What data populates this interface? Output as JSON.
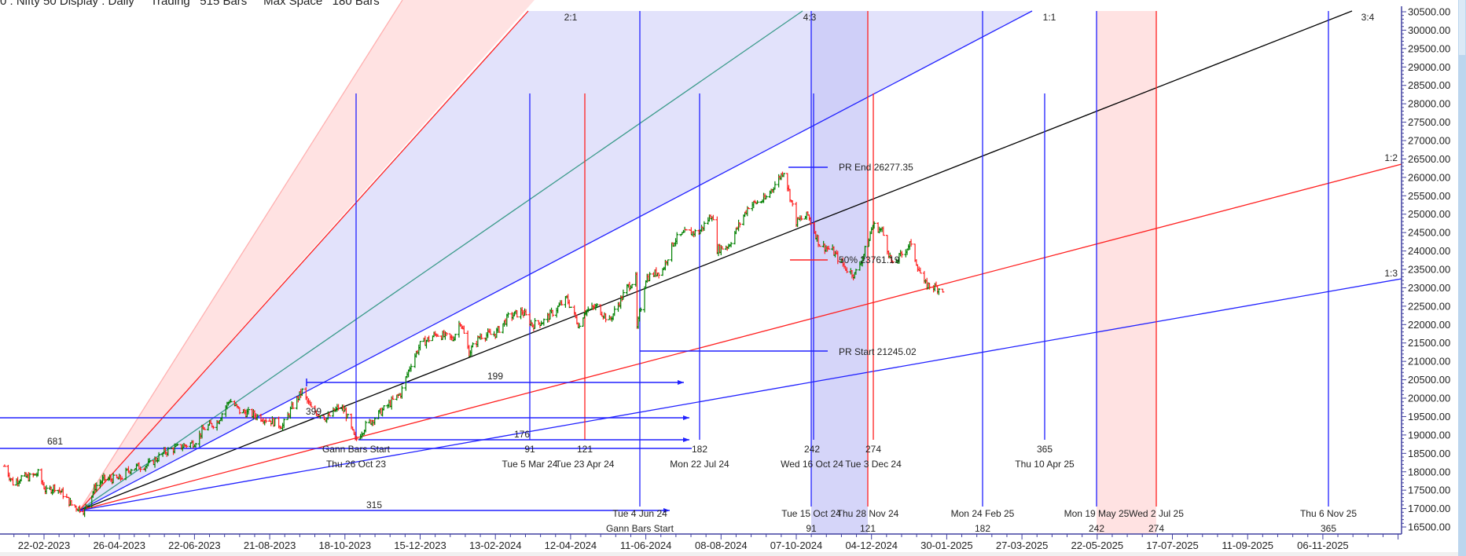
{
  "title": "0 : Nifty 50 Display : Daily     Trading   515 Bars     Max Space   180 Bars",
  "colors": {
    "up_bar": "#008000",
    "down_bar": "#ff2020",
    "gann_blue": "#2020ff",
    "gann_red": "#ff2020",
    "gann_teal": "#3a9a8a",
    "gann_black": "#000000",
    "zone_lavender": "#e2e2fb",
    "zone_lavender_dark": "#cacaf7",
    "zone_pink": "#ffe2e2",
    "axis": "#4040a0"
  },
  "chart_data": {
    "type": "ohlc",
    "instrument": "Nifty 50",
    "timeframe": "Daily",
    "y_axis": {
      "range": [
        16500,
        30500
      ],
      "ticks": [
        "30500.00",
        "30000.00",
        "29500.00",
        "29000.00",
        "28500.00",
        "28000.00",
        "27500.00",
        "27000.00",
        "26500.00",
        "26000.00",
        "25500.00",
        "25000.00",
        "24500.00",
        "24000.00",
        "23500.00",
        "23000.00",
        "22500.00",
        "22000.00",
        "21500.00",
        "21000.00",
        "20500.00",
        "20000.00",
        "19500.00",
        "19000.00",
        "18500.00",
        "18000.00",
        "17500.00",
        "17000.00",
        "16500.00"
      ]
    },
    "x_axis": {
      "ticks": [
        "22-02-2023",
        "26-04-2023",
        "22-06-2023",
        "21-08-2023",
        "18-10-2023",
        "15-12-2023",
        "13-02-2024",
        "12-04-2024",
        "11-06-2024",
        "08-08-2024",
        "07-10-2024",
        "04-12-2024",
        "30-01-2025",
        "27-03-2025",
        "22-05-2025",
        "17-07-2025",
        "11-09-2025",
        "06-11-2025"
      ]
    },
    "closes": [
      [
        "2023-01-20",
        18150
      ],
      [
        "2023-01-27",
        17700
      ],
      [
        "2023-02-03",
        17850
      ],
      [
        "2023-02-10",
        17850
      ],
      [
        "2023-02-17",
        17950
      ],
      [
        "2023-02-24",
        17450
      ],
      [
        "2023-03-03",
        17600
      ],
      [
        "2023-03-10",
        17400
      ],
      [
        "2023-03-17",
        17100
      ],
      [
        "2023-03-28",
        16950
      ],
      [
        "2023-04-06",
        17600
      ],
      [
        "2023-04-13",
        17800
      ],
      [
        "2023-04-26",
        17800
      ],
      [
        "2023-05-05",
        18100
      ],
      [
        "2023-05-19",
        18200
      ],
      [
        "2023-05-31",
        18550
      ],
      [
        "2023-06-13",
        18700
      ],
      [
        "2023-06-22",
        18800
      ],
      [
        "2023-06-30",
        19190
      ],
      [
        "2023-07-10",
        19350
      ],
      [
        "2023-07-20",
        19950
      ],
      [
        "2023-07-28",
        19650
      ],
      [
        "2023-08-08",
        19550
      ],
      [
        "2023-08-21",
        19400
      ],
      [
        "2023-08-31",
        19250
      ],
      [
        "2023-09-08",
        19800
      ],
      [
        "2023-09-15",
        20190
      ],
      [
        "2023-09-22",
        19700
      ],
      [
        "2023-10-04",
        19450
      ],
      [
        "2023-10-13",
        19750
      ],
      [
        "2023-10-18",
        19650
      ],
      [
        "2023-10-26",
        18850
      ],
      [
        "2023-11-03",
        19250
      ],
      [
        "2023-11-17",
        19700
      ],
      [
        "2023-11-30",
        20130
      ],
      [
        "2023-12-08",
        20950
      ],
      [
        "2023-12-15",
        21450
      ],
      [
        "2023-12-28",
        21750
      ],
      [
        "2024-01-10",
        21600
      ],
      [
        "2024-01-16",
        22100
      ],
      [
        "2024-01-23",
        21240
      ],
      [
        "2024-02-01",
        21700
      ],
      [
        "2024-02-13",
        21750
      ],
      [
        "2024-02-23",
        22200
      ],
      [
        "2024-03-05",
        22350
      ],
      [
        "2024-03-13",
        21990
      ],
      [
        "2024-03-22",
        22100
      ],
      [
        "2024-04-09",
        22700
      ],
      [
        "2024-04-19",
        21950
      ],
      [
        "2024-04-23",
        22370
      ],
      [
        "2024-05-03",
        22480
      ],
      [
        "2024-05-13",
        22100
      ],
      [
        "2024-05-27",
        23000
      ],
      [
        "2024-06-03",
        23260
      ],
      [
        "2024-06-04",
        21880
      ],
      [
        "2024-06-11",
        23260
      ],
      [
        "2024-06-24",
        23500
      ],
      [
        "2024-07-03",
        24290
      ],
      [
        "2024-07-12",
        24500
      ],
      [
        "2024-07-22",
        24510
      ],
      [
        "2024-08-01",
        25010
      ],
      [
        "2024-08-05",
        24050
      ],
      [
        "2024-08-14",
        24150
      ],
      [
        "2024-08-30",
        25230
      ],
      [
        "2024-09-12",
        25400
      ],
      [
        "2024-09-27",
        26180
      ],
      [
        "2024-10-07",
        24790
      ],
      [
        "2024-10-16",
        24970
      ],
      [
        "2024-10-25",
        24180
      ],
      [
        "2024-11-04",
        23995
      ],
      [
        "2024-11-14",
        23530
      ],
      [
        "2024-11-21",
        23350
      ],
      [
        "2024-11-28",
        23910
      ],
      [
        "2024-12-05",
        24700
      ],
      [
        "2024-12-12",
        24550
      ],
      [
        "2024-12-20",
        23590
      ],
      [
        "2025-01-02",
        24190
      ],
      [
        "2025-01-13",
        23090
      ],
      [
        "2025-01-21",
        23020
      ],
      [
        "2025-01-28",
        22950
      ]
    ],
    "gann_fan": {
      "angle_labels": [
        "2:1",
        "4:3",
        "1:1",
        "3:4",
        "1:2",
        "1:3"
      ]
    },
    "price_range": {
      "start_label": "PR Start 21245.02",
      "end_label": "PR End 26277.35",
      "mid_label": "50% 23761.19"
    },
    "bar_count_labels": [
      "681",
      "399",
      "199",
      "176",
      "315"
    ],
    "upper_cycle_markers": [
      {
        "count": "",
        "date": "Thu 26 Oct 23",
        "caption": "Gann Bars Start"
      },
      {
        "count": "91",
        "date": "Tue 5 Mar 24"
      },
      {
        "count": "121",
        "date": "Tue 23 Apr 24"
      },
      {
        "count": "182",
        "date": "Mon 22 Jul 24"
      },
      {
        "count": "242",
        "date": "Wed 16 Oct 24"
      },
      {
        "count": "274",
        "date": "Tue 3 Dec 24"
      },
      {
        "count": "365",
        "date": "Thu 10 Apr 25"
      }
    ],
    "lower_cycle_markers": [
      {
        "date": "Tue 4 Jun 24",
        "count": "Gann Bars Start"
      },
      {
        "date": "Tue 15 Oct 24",
        "count": "91"
      },
      {
        "date": "Thu 28 Nov 24",
        "count": "121"
      },
      {
        "date": "Mon 24 Feb 25",
        "count": "182"
      },
      {
        "date": "Mon 19 May 25",
        "count": "242"
      },
      {
        "date": "Wed 2 Jul 25",
        "count": "274"
      },
      {
        "date": "Thu 6 Nov 25",
        "count": "365"
      }
    ]
  }
}
